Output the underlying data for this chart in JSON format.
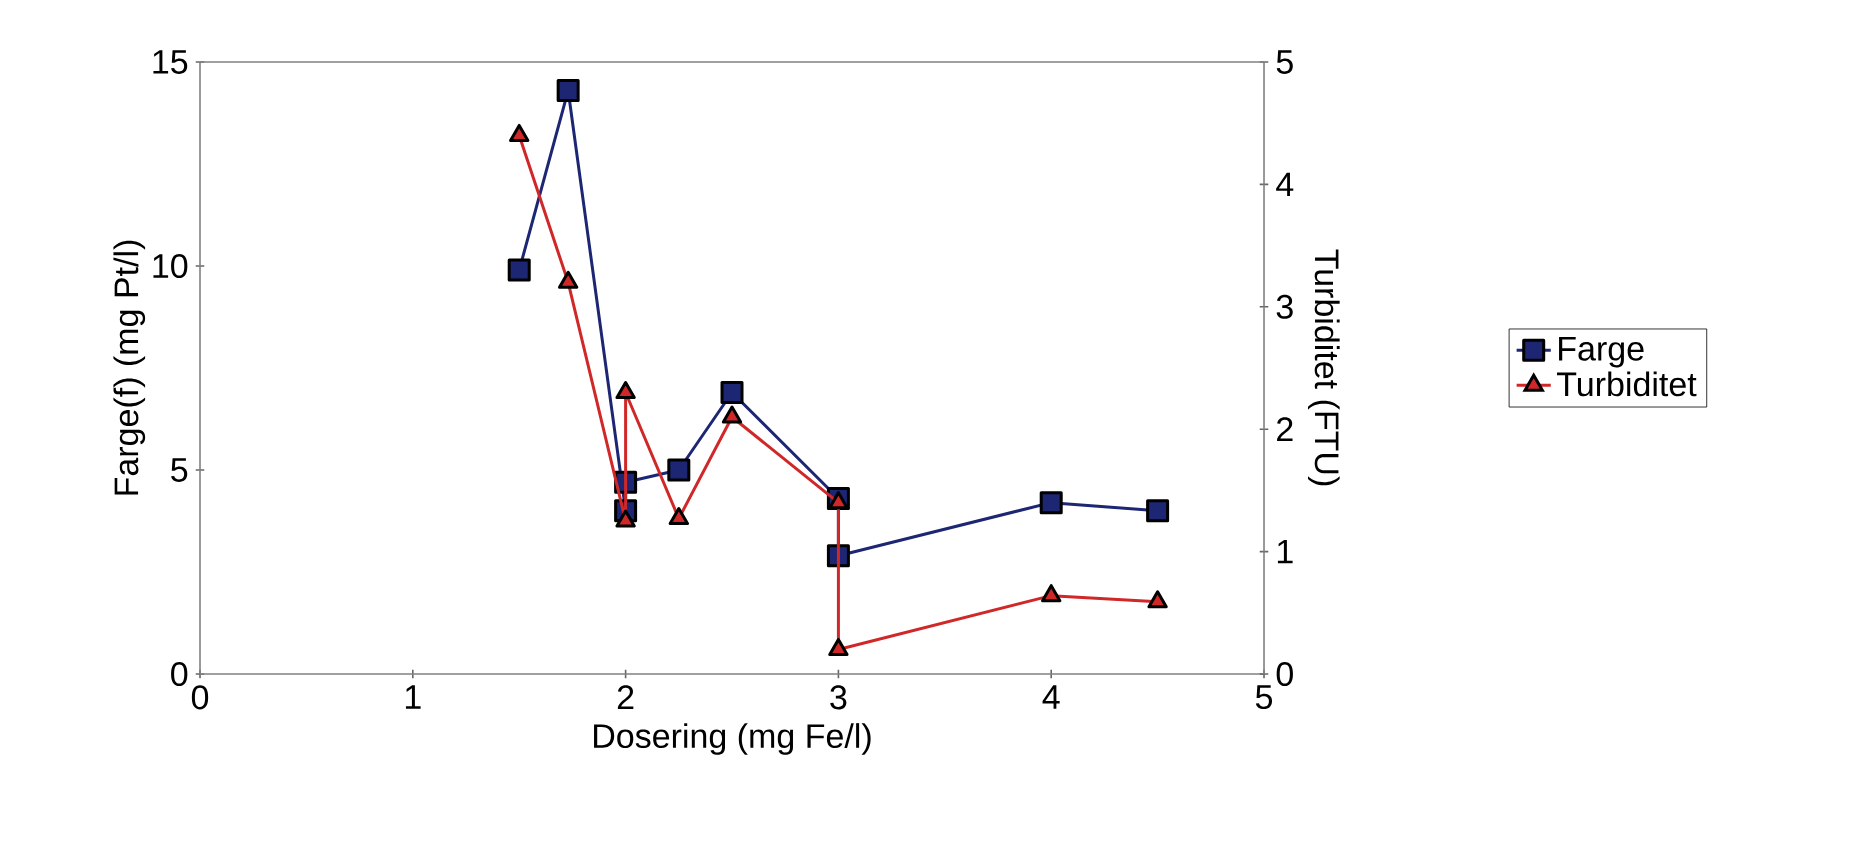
{
  "chart_data": {
    "type": "line",
    "xlabel": "Dosering (mg Fe/l)",
    "ylabel": "Farge(f) (mg Pt/l)",
    "y2label": "Turbiditet (FTU)",
    "xlim": [
      0,
      5
    ],
    "xticks": [
      0,
      1,
      2,
      3,
      4,
      5
    ],
    "ylim": [
      0,
      15
    ],
    "yticks": [
      0,
      5,
      10,
      15
    ],
    "y2lim": [
      0,
      5
    ],
    "y2ticks": [
      0,
      1,
      2,
      3,
      4,
      5
    ],
    "legend": "right",
    "grid": false,
    "series": [
      {
        "name": "Farge",
        "color": "#1c2673",
        "marker": "square",
        "x": [
          1.5,
          1.73,
          2.0,
          2.0,
          2.25,
          2.5,
          3.0,
          3.0,
          4.0,
          4.5
        ],
        "values": [
          9.9,
          14.3,
          4.0,
          4.7,
          5.0,
          6.9,
          4.3,
          2.9,
          4.2,
          4.0
        ]
      },
      {
        "name": "Turbiditet",
        "color": "#d02828",
        "marker": "triangle",
        "axis": "y2",
        "x": [
          1.5,
          1.73,
          2.0,
          2.0,
          2.25,
          2.5,
          3.0,
          3.0,
          4.0,
          4.5
        ],
        "values": [
          4.4,
          3.2,
          1.25,
          2.3,
          1.27,
          2.1,
          1.4,
          0.2,
          0.64,
          0.59
        ]
      }
    ]
  }
}
